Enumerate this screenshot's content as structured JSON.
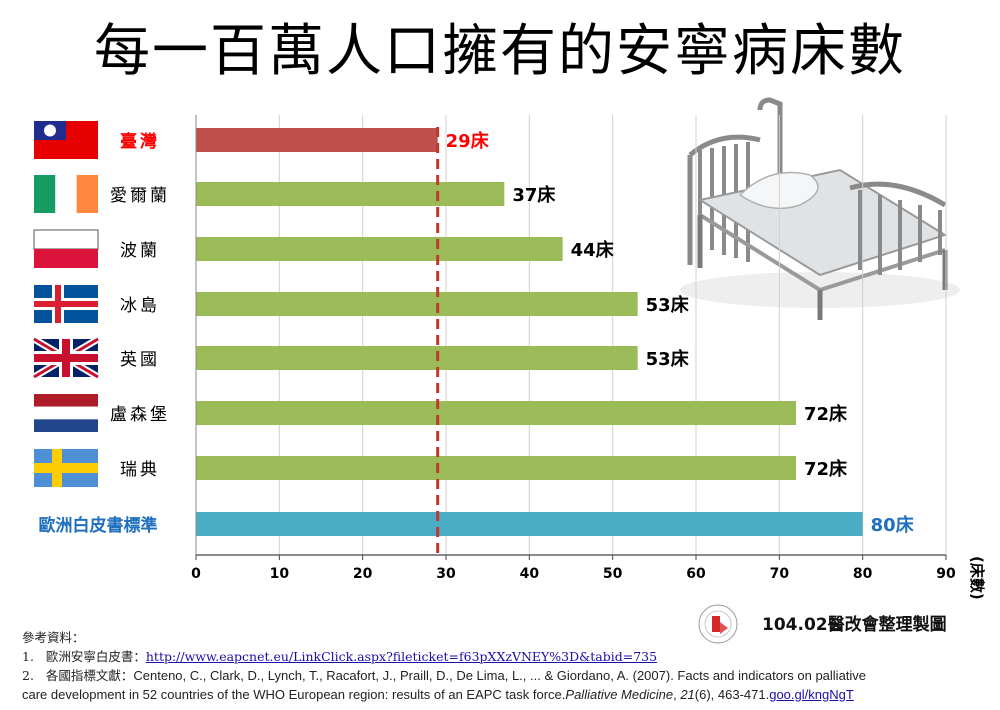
{
  "title": "每一百萬人口擁有的安寧病床數",
  "chart_data": {
    "type": "bar",
    "orientation": "horizontal",
    "categories": [
      "臺灣",
      "愛爾蘭",
      "波蘭",
      "冰島",
      "英國",
      "盧森堡",
      "瑞典",
      "歐洲白皮書標準"
    ],
    "values": [
      29,
      37,
      44,
      53,
      53,
      72,
      72,
      80
    ],
    "value_labels": [
      "29床",
      "37床",
      "44床",
      "53床",
      "53床",
      "72床",
      "72床",
      "80床"
    ],
    "reference_line": 29,
    "xlim": [
      0,
      90
    ],
    "xticks": [
      0,
      10,
      20,
      30,
      40,
      50,
      60,
      70,
      80,
      90
    ],
    "xlabel": "(床數)",
    "grid": true,
    "colors": {
      "taiwan": "#c0504d",
      "countries": "#9bbb59",
      "standard": "#4bacc6",
      "taiwan_label": "#ff0000",
      "standard_label": "#1f6fbf",
      "reference": "#c0392b"
    },
    "flags": [
      "taiwan-flag-icon",
      "ireland-flag-icon",
      "poland-flag-icon",
      "iceland-flag-icon",
      "uk-flag-icon",
      "netherlands-flag-icon",
      "sweden-flag-icon",
      null
    ]
  },
  "credit": "104.02醫改會整理製圖",
  "refs": {
    "heading": "參考資料：",
    "r1_num": "1.",
    "r1_text": "歐洲安寧白皮書：",
    "r1_link": "http://www.eapcnet.eu/LinkClick.aspx?fileticket=f63pXXzVNEY%3D&tabid=735",
    "r2_num": "2.",
    "r2_text": "各國指標文獻：",
    "r2_line1": "Centeno, C., Clark, D., Lynch, T., Racafort, J., Praill, D., De Lima, L., ... & Giordano, A. (2007). Facts and indicators on palliative",
    "r2_line2a": "care development in 52 countries of the WHO European region: results of an EAPC task force.",
    "r2_journal": "Palliative Medicine",
    "r2_line2b": ", ",
    "r2_volume": "21",
    "r2_line2c": "(6), 463-471.",
    "r2_link": "goo.gl/kngNgT"
  }
}
